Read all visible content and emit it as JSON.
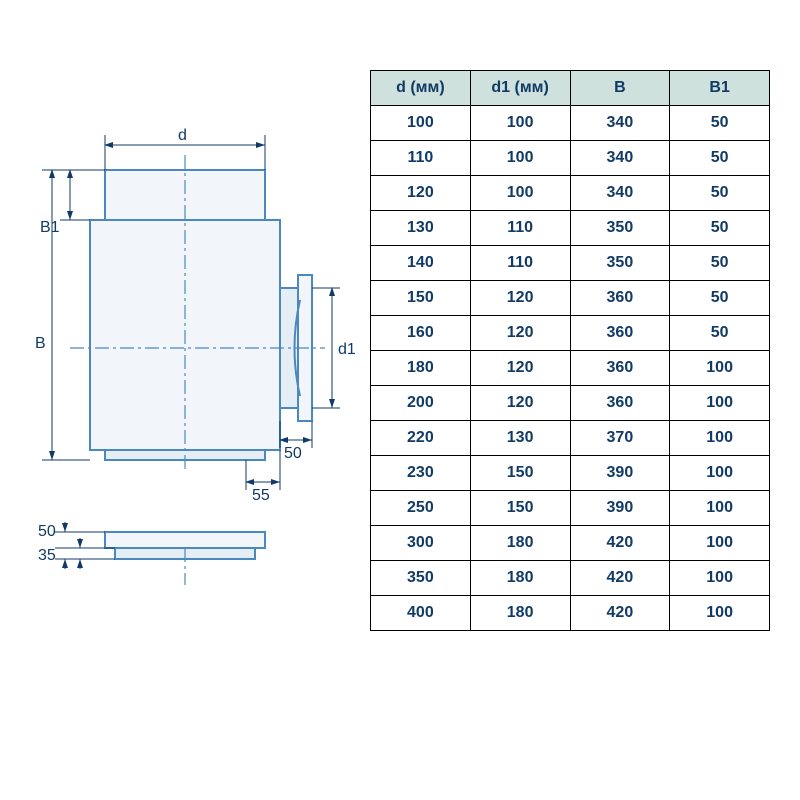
{
  "colors": {
    "stroke": "#4b88bf",
    "fill_light": "#f2f6fa",
    "fill_mid": "#e6eef5",
    "text": "#113a66",
    "header_bg": "#cfe1dc",
    "border": "#000000"
  },
  "diagram": {
    "labels": {
      "d": "d",
      "B": "B",
      "B1": "B1",
      "d1": "d1",
      "dim50_a": "50",
      "dim55": "55",
      "dim50_b": "50",
      "dim35": "35"
    }
  },
  "table": {
    "columns": [
      "d (мм)",
      "d1 (мм)",
      "B",
      "B1"
    ],
    "rows": [
      [
        "100",
        "100",
        "340",
        "50"
      ],
      [
        "110",
        "100",
        "340",
        "50"
      ],
      [
        "120",
        "100",
        "340",
        "50"
      ],
      [
        "130",
        "110",
        "350",
        "50"
      ],
      [
        "140",
        "110",
        "350",
        "50"
      ],
      [
        "150",
        "120",
        "360",
        "50"
      ],
      [
        "160",
        "120",
        "360",
        "50"
      ],
      [
        "180",
        "120",
        "360",
        "100"
      ],
      [
        "200",
        "120",
        "360",
        "100"
      ],
      [
        "220",
        "130",
        "370",
        "100"
      ],
      [
        "230",
        "150",
        "390",
        "100"
      ],
      [
        "250",
        "150",
        "390",
        "100"
      ],
      [
        "300",
        "180",
        "420",
        "100"
      ],
      [
        "350",
        "180",
        "420",
        "100"
      ],
      [
        "400",
        "180",
        "420",
        "100"
      ]
    ]
  }
}
